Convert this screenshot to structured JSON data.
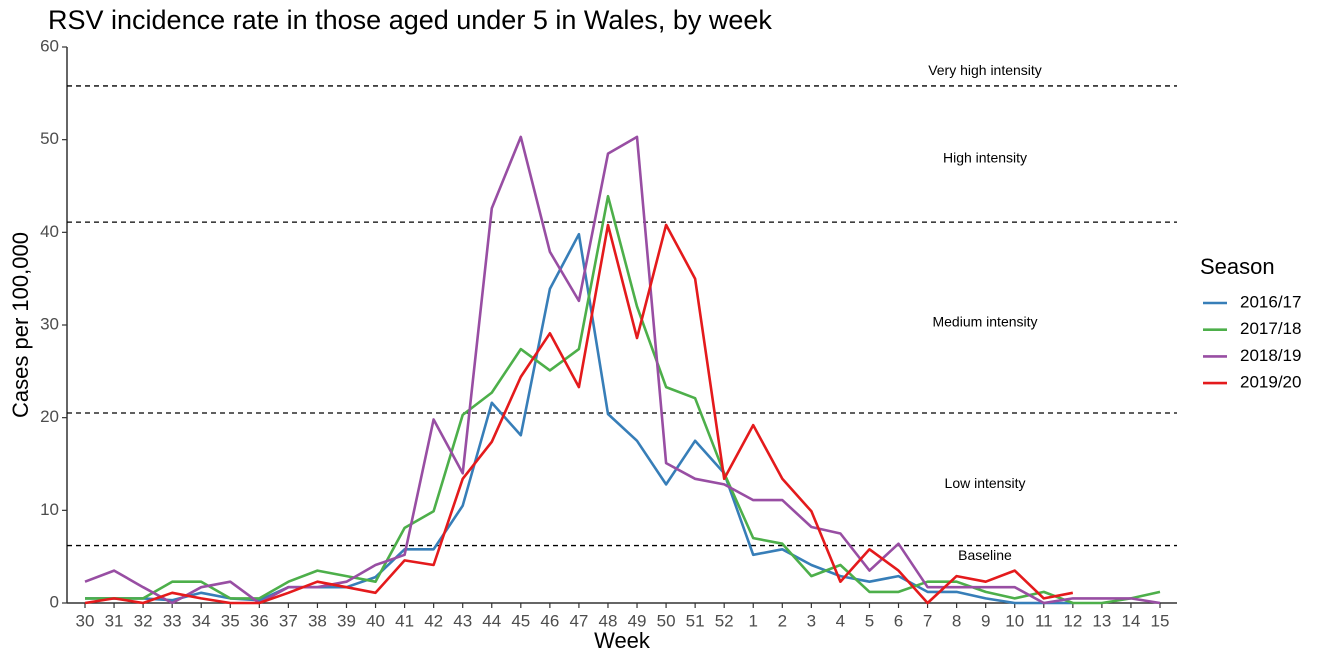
{
  "chart_data": {
    "type": "line",
    "title": "RSV incidence rate in those aged under 5 in Wales, by week",
    "x_label": "Week",
    "y_label": "Cases per 100,000",
    "legend_title": "Season",
    "categories": [
      "30",
      "31",
      "32",
      "33",
      "34",
      "35",
      "36",
      "37",
      "38",
      "39",
      "40",
      "41",
      "42",
      "43",
      "44",
      "45",
      "46",
      "47",
      "48",
      "49",
      "50",
      "51",
      "52",
      "1",
      "2",
      "3",
      "4",
      "5",
      "6",
      "7",
      "8",
      "9",
      "10",
      "11",
      "12",
      "13",
      "14",
      "15"
    ],
    "series": [
      {
        "name": "2016/17",
        "color": "#377eb8",
        "values": [
          0.5,
          0.5,
          0.5,
          0.3,
          1.1,
          0.5,
          0.3,
          1.7,
          1.7,
          1.7,
          2.8,
          5.8,
          5.8,
          10.5,
          21.6,
          18.1,
          33.9,
          39.8,
          20.4,
          17.5,
          12.8,
          17.5,
          14.0,
          5.2,
          5.8,
          4.1,
          2.9,
          2.3,
          2.9,
          1.2,
          1.2,
          0.5,
          0,
          0,
          0,
          null,
          null,
          null
        ]
      },
      {
        "name": "2017/18",
        "color": "#4daf4a",
        "values": [
          0.5,
          0.5,
          0.5,
          2.3,
          2.3,
          0.5,
          0.5,
          2.3,
          3.5,
          2.9,
          2.3,
          8.1,
          9.9,
          20.3,
          22.7,
          27.4,
          25.1,
          27.4,
          43.9,
          32.0,
          23.3,
          22.1,
          14.0,
          7.0,
          6.4,
          2.9,
          4.1,
          1.2,
          1.2,
          2.3,
          2.3,
          1.2,
          0.5,
          1.2,
          0,
          0,
          0.5,
          1.2
        ]
      },
      {
        "name": "2018/19",
        "color": "#984ea3",
        "values": [
          2.3,
          3.5,
          1.7,
          0,
          1.7,
          2.3,
          0,
          1.7,
          1.7,
          2.3,
          4.1,
          5.2,
          19.8,
          14.0,
          42.6,
          50.3,
          37.9,
          32.6,
          48.5,
          50.3,
          15.1,
          13.4,
          12.8,
          11.1,
          11.1,
          8.2,
          7.5,
          3.5,
          6.4,
          1.7,
          1.7,
          1.7,
          1.7,
          0,
          0.5,
          0.5,
          0.5,
          0
        ]
      },
      {
        "name": "2019/20",
        "color": "#e41a1c",
        "values": [
          0,
          0.5,
          0,
          1.1,
          0.5,
          0,
          0,
          1.1,
          2.3,
          1.7,
          1.1,
          4.6,
          4.1,
          13.4,
          17.4,
          24.4,
          29.1,
          23.3,
          40.8,
          28.6,
          40.8,
          35.0,
          13.4,
          19.2,
          13.4,
          9.9,
          2.3,
          5.8,
          3.5,
          0,
          2.9,
          2.3,
          3.5,
          0.5,
          1.1,
          null,
          null,
          null
        ]
      }
    ],
    "ylim": [
      0,
      60
    ],
    "yticks": [
      0,
      10,
      20,
      30,
      40,
      50,
      60
    ],
    "reference_lines": [
      6.2,
      20.5,
      41.1,
      55.8
    ],
    "band_labels": [
      "Baseline",
      "Low intensity",
      "Medium intensity",
      "High intensity",
      "Very high intensity"
    ]
  }
}
